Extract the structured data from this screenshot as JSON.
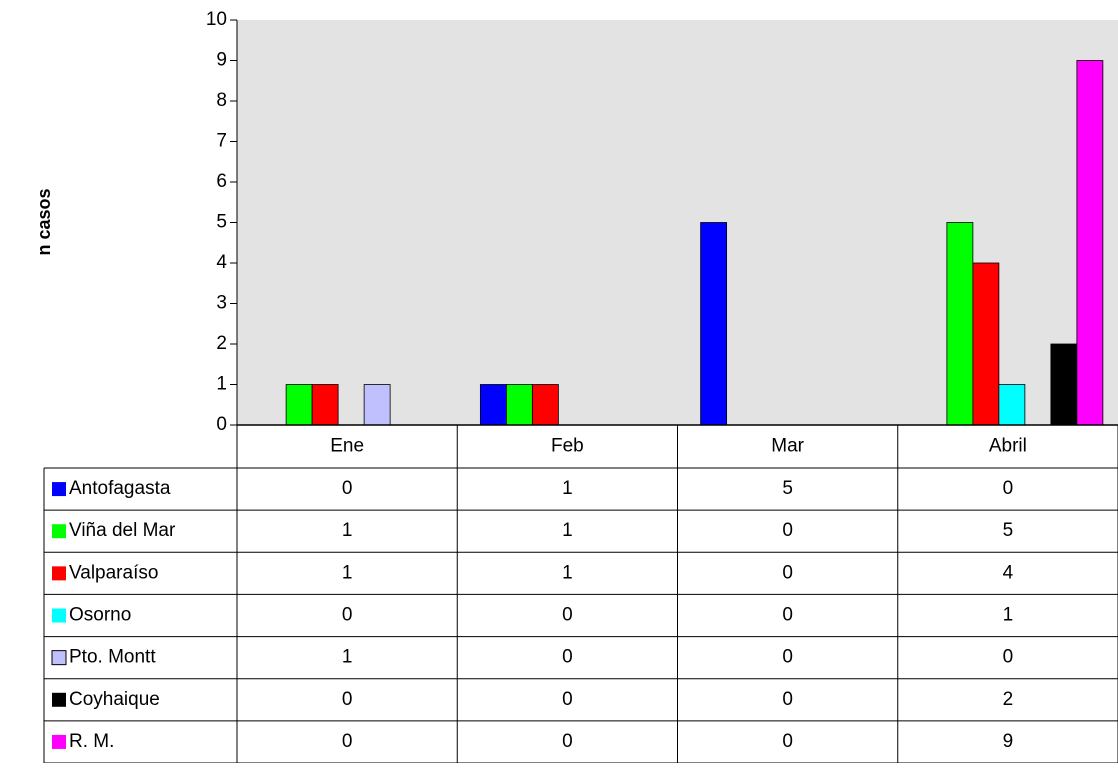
{
  "chart_data": {
    "type": "bar",
    "y_label": "n casos",
    "categories": [
      "Ene",
      "Feb",
      "Mar",
      "Abril"
    ],
    "series": [
      {
        "name": "Antofagasta",
        "color": "#0000ff",
        "values": [
          0,
          1,
          5,
          0
        ]
      },
      {
        "name": "Viña del Mar",
        "color": "#00ff00",
        "values": [
          1,
          1,
          0,
          5
        ]
      },
      {
        "name": "Valparaíso",
        "color": "#ff0000",
        "values": [
          1,
          1,
          0,
          4
        ]
      },
      {
        "name": "Osorno",
        "color": "#00ffff",
        "values": [
          0,
          0,
          0,
          1
        ]
      },
      {
        "name": "Pto. Montt",
        "color": "#c0c0ff",
        "values": [
          1,
          0,
          0,
          0
        ]
      },
      {
        "name": "Coyhaique",
        "color": "#000000",
        "values": [
          0,
          0,
          0,
          2
        ]
      },
      {
        "name": "R. M.",
        "color": "#ff00ff",
        "values": [
          0,
          0,
          0,
          9
        ]
      }
    ],
    "ylim": [
      0,
      10
    ],
    "yticks": [
      0,
      1,
      2,
      3,
      4,
      5,
      6,
      7,
      8,
      9,
      10
    ]
  }
}
